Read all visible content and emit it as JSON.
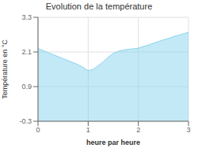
{
  "chart_data": {
    "type": "area",
    "title": "Evolution de la température",
    "xlabel": "heure par heure",
    "ylabel": "Température en °C",
    "x": [
      0.0,
      0.1,
      0.2,
      0.3,
      0.4,
      0.5,
      0.6,
      0.7,
      0.8,
      0.9,
      1.0,
      1.1,
      1.2,
      1.3,
      1.4,
      1.5,
      1.6,
      1.7,
      1.8,
      1.9,
      2.0,
      2.1,
      2.2,
      2.3,
      2.4,
      2.5,
      2.6,
      2.7,
      2.8,
      2.9,
      3.0
    ],
    "values": [
      2.22,
      2.15,
      2.08,
      2.01,
      1.94,
      1.87,
      1.8,
      1.73,
      1.66,
      1.56,
      1.45,
      1.5,
      1.62,
      1.76,
      1.92,
      2.05,
      2.12,
      2.17,
      2.19,
      2.21,
      2.23,
      2.29,
      2.34,
      2.4,
      2.46,
      2.52,
      2.57,
      2.63,
      2.68,
      2.73,
      2.78
    ],
    "color": "#88d4ee",
    "xlim": [
      0,
      3
    ],
    "ylim": [
      -0.3,
      3.3
    ],
    "xticks": [
      0,
      1,
      2,
      3
    ],
    "yticks": [
      -0.3,
      0.9,
      2.1,
      3.3
    ],
    "grid": true
  }
}
